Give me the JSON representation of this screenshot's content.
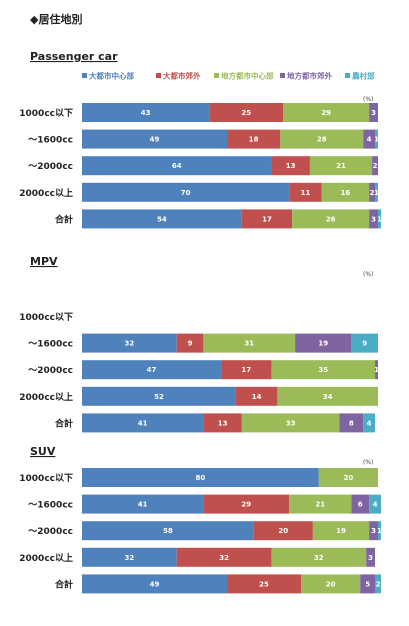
{
  "page_title": "◆居住地別",
  "legend": [
    {
      "label": "大都市中心部",
      "color": "#4f81bd"
    },
    {
      "label": "大都市郊外",
      "color": "#c0504d"
    },
    {
      "label": "地方都市中心部",
      "color": "#9bbb59"
    },
    {
      "label": "地方都市郊外",
      "color": "#8064a2"
    },
    {
      "label": "農村部",
      "color": "#4bacc6"
    }
  ],
  "chart_data": [
    {
      "type": "bar",
      "orientation": "horizontal",
      "stacked": true,
      "title": "Passenger car",
      "unit_label": "(%)",
      "categories": [
        "1000cc以下",
        "～1600cc",
        "～2000cc",
        "2000cc以上",
        "合計"
      ],
      "series": [
        {
          "name": "大都市中心部",
          "values": [
            43,
            49,
            64,
            70,
            54
          ]
        },
        {
          "name": "大都市郊外",
          "values": [
            25,
            18,
            13,
            11,
            17
          ]
        },
        {
          "name": "地方都市中心部",
          "values": [
            29,
            28,
            21,
            16,
            26
          ]
        },
        {
          "name": "地方都市郊外",
          "values": [
            3,
            4,
            2,
            2,
            3
          ]
        },
        {
          "name": "農村部",
          "values": [
            0,
            1,
            0,
            1,
            1
          ]
        }
      ]
    },
    {
      "type": "bar",
      "orientation": "horizontal",
      "stacked": true,
      "title": "MPV",
      "unit_label": "(%)",
      "categories": [
        "1000cc以下",
        "～1600cc",
        "～2000cc",
        "2000cc以上",
        "合計"
      ],
      "series": [
        {
          "name": "大都市中心部",
          "values": [
            0,
            32,
            47,
            52,
            41
          ]
        },
        {
          "name": "大都市郊外",
          "values": [
            0,
            9,
            17,
            14,
            13
          ]
        },
        {
          "name": "地方都市中心部",
          "values": [
            0,
            31,
            35,
            34,
            33
          ]
        },
        {
          "name": "地方都市郊外",
          "values": [
            0,
            19,
            1,
            0,
            8
          ]
        },
        {
          "name": "農村部",
          "values": [
            0,
            9,
            0,
            0,
            4
          ]
        }
      ]
    },
    {
      "type": "bar",
      "orientation": "horizontal",
      "stacked": true,
      "title": "SUV",
      "unit_label": "(%)",
      "categories": [
        "1000cc以下",
        "～1600cc",
        "～2000cc",
        "2000cc以上",
        "合計"
      ],
      "series": [
        {
          "name": "大都市中心部",
          "values": [
            80,
            41,
            58,
            32,
            49
          ]
        },
        {
          "name": "大都市郊外",
          "values": [
            0,
            29,
            20,
            32,
            25
          ]
        },
        {
          "name": "地方都市中心部",
          "values": [
            20,
            21,
            19,
            32,
            20
          ]
        },
        {
          "name": "地方都市郊外",
          "values": [
            0,
            6,
            3,
            3,
            5
          ]
        },
        {
          "name": "農村部",
          "values": [
            0,
            4,
            1,
            0,
            2
          ]
        }
      ]
    }
  ]
}
